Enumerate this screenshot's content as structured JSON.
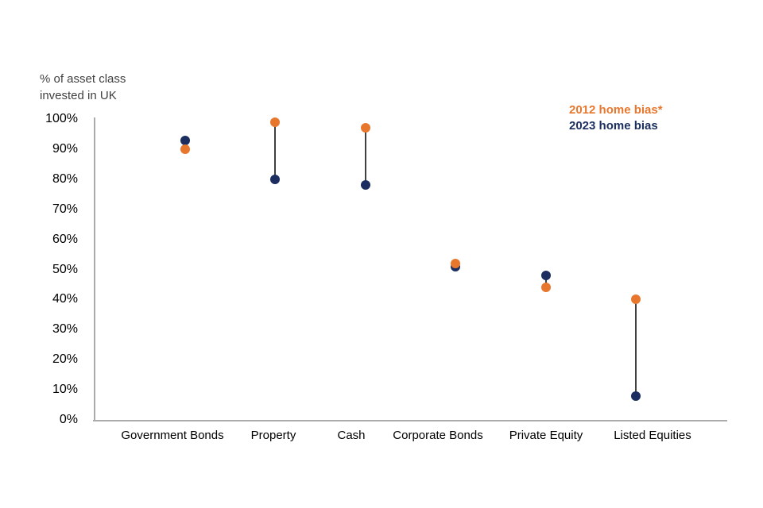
{
  "chart_data": {
    "type": "scatter",
    "subtype": "dumbbell",
    "title": "",
    "ylabel_lines": [
      "% of asset class",
      "invested in UK"
    ],
    "categories": [
      "Government Bonds",
      "Property",
      "Cash",
      "Corporate Bonds",
      "Private Equity",
      "Listed Equities"
    ],
    "series": [
      {
        "name": "2012 home bias*",
        "color": "#E8772E",
        "values": [
          90,
          99,
          97,
          52,
          44,
          40
        ]
      },
      {
        "name": "2023 home bias",
        "color": "#1B2E5F",
        "values": [
          93,
          80,
          78,
          51,
          48,
          8
        ]
      }
    ],
    "connectors": [
      false,
      true,
      true,
      false,
      true,
      true
    ],
    "y_axis": {
      "min": 0,
      "max": 100,
      "step": 10,
      "tick_labels": [
        "100%",
        "90%",
        "80%",
        "70%",
        "60%",
        "50%",
        "40%",
        "30%",
        "20%",
        "10%",
        "0%"
      ]
    },
    "x_axis": {
      "tick_labels": [
        "Government Bonds",
        "Property",
        "Cash",
        "Corporate Bonds",
        "Private Equity",
        "Listed Equities"
      ]
    },
    "grid": false,
    "legend_position": "top-right"
  },
  "colors": {
    "orange": "#E8772E",
    "navy": "#1B2E5F",
    "axis_line": "#ABABAB",
    "connector": "#404040",
    "axis_title_text": "#404040",
    "tick_text": "#000000",
    "background": "#FFFFFF"
  }
}
